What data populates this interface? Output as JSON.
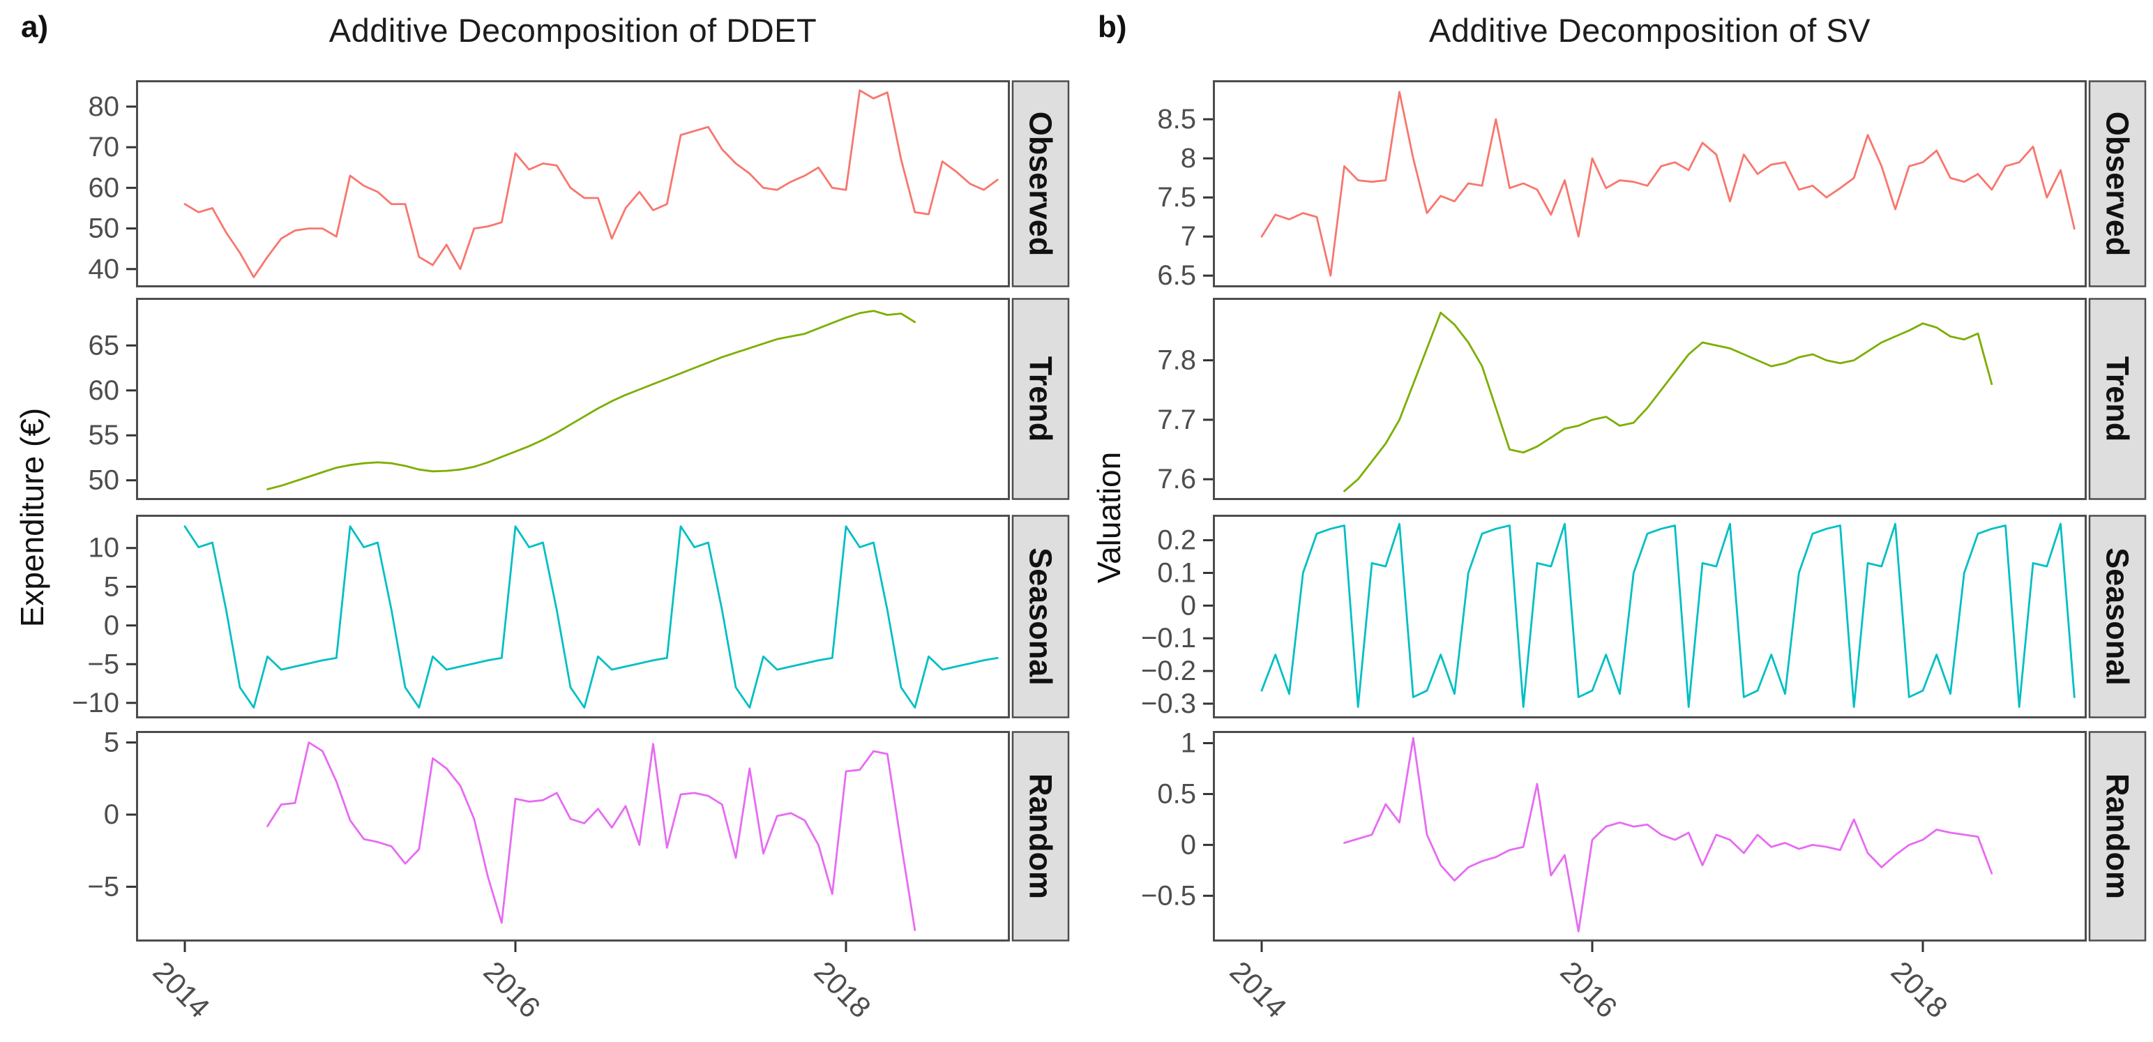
{
  "chart_data": {
    "type": "line",
    "description": "Two faceted additive time-series decompositions (Observed, Trend, Seasonal, Random), monthly data 2014-2018",
    "x_tick_years": [
      2014,
      2016,
      2018
    ],
    "figures": [
      {
        "tag": "a)",
        "title": "Additive Decomposition of DDET",
        "y_axis_label": "Expenditure (€)",
        "x_tick_labels": [
          "2014",
          "2016",
          "2018"
        ],
        "panels": [
          {
            "label": "Observed",
            "color": "#F8766D",
            "x_start_year": 2014.0,
            "ylim": [
              35.5,
              86.5
            ],
            "yticks": [
              40,
              50,
              60,
              70,
              80
            ],
            "ytick_labels": [
              "40",
              "50",
              "60",
              "70",
              "80"
            ],
            "values": [
              56,
              54,
              55,
              49,
              44,
              38,
              43,
              47.5,
              49.5,
              50,
              50,
              48,
              63,
              60.5,
              59,
              56,
              56,
              43,
              41,
              46,
              40,
              50,
              50.5,
              51.5,
              68.5,
              64.5,
              66,
              65.5,
              60,
              57.5,
              57.5,
              47.5,
              55,
              59,
              54.5,
              56,
              73,
              74,
              75,
              69.5,
              66,
              63.5,
              60,
              59.5,
              61.5,
              63,
              65,
              60,
              59.5,
              84,
              82,
              83.5,
              67,
              54,
              53.5,
              66.5,
              64,
              61,
              59.5,
              62
            ]
          },
          {
            "label": "Trend",
            "color": "#7CAE00",
            "x_start_year": 2014.5,
            "ylim": [
              47.8,
              70.3
            ],
            "yticks": [
              50,
              55,
              60,
              65
            ],
            "ytick_labels": [
              "50",
              "55",
              "60",
              "65"
            ],
            "values": [
              49,
              49.4,
              49.9,
              50.4,
              50.9,
              51.4,
              51.7,
              51.9,
              52,
              51.9,
              51.6,
              51.2,
              51,
              51.05,
              51.2,
              51.5,
              52,
              52.6,
              53.2,
              53.8,
              54.5,
              55.3,
              56.2,
              57.1,
              58,
              58.8,
              59.5,
              60.1,
              60.7,
              61.3,
              61.9,
              62.5,
              63.1,
              63.7,
              64.2,
              64.7,
              65.2,
              65.7,
              66,
              66.3,
              66.9,
              67.5,
              68.1,
              68.6,
              68.85,
              68.4,
              68.55,
              67.6
            ]
          },
          {
            "label": "Seasonal",
            "color": "#00BFC4",
            "x_start_year": 2014.0,
            "ylim": [
              -12,
              14.3
            ],
            "yticks": [
              -10,
              -5,
              0,
              5,
              10
            ],
            "ytick_labels": [
              "−10",
              "−5",
              "0",
              "5",
              "10"
            ],
            "values": [
              12.8,
              10.1,
              10.7,
              2,
              -8,
              -10.6,
              -4,
              -5.7,
              -5.3,
              -4.9,
              -4.5,
              -4.2,
              12.8,
              10.1,
              10.7,
              2,
              -8,
              -10.6,
              -4,
              -5.7,
              -5.3,
              -4.9,
              -4.5,
              -4.2,
              12.8,
              10.1,
              10.7,
              2,
              -8,
              -10.6,
              -4,
              -5.7,
              -5.3,
              -4.9,
              -4.5,
              -4.2,
              12.8,
              10.1,
              10.7,
              2,
              -8,
              -10.6,
              -4,
              -5.7,
              -5.3,
              -4.9,
              -4.5,
              -4.2,
              12.8,
              10.1,
              10.7,
              2,
              -8,
              -10.6,
              -4,
              -5.7,
              -5.3,
              -4.9,
              -4.5,
              -4.2
            ]
          },
          {
            "label": "Random",
            "color": "#E76BF3",
            "x_start_year": 2014.5,
            "ylim": [
              -8.8,
              5.8
            ],
            "yticks": [
              -5,
              0,
              5
            ],
            "ytick_labels": [
              "−5",
              "0",
              "5"
            ],
            "values": [
              -0.8,
              0.7,
              0.8,
              5,
              4.4,
              2.3,
              -0.4,
              -1.7,
              -1.9,
              -2.2,
              -3.4,
              -2.4,
              3.9,
              3.2,
              2,
              -0.3,
              -4.3,
              -7.5,
              1.1,
              0.9,
              1,
              1.5,
              -0.3,
              -0.6,
              0.4,
              -0.9,
              0.6,
              -2.1,
              4.9,
              -2.3,
              1.4,
              1.5,
              1.3,
              0.7,
              -3,
              3.2,
              -2.7,
              -0.1,
              0.1,
              -0.4,
              -2.1,
              -5.5,
              3,
              3.1,
              4.4,
              4.2,
              -2,
              -8
            ]
          }
        ]
      },
      {
        "tag": "b)",
        "title": "Additive Decomposition of SV",
        "y_axis_label": "Valuation",
        "x_tick_labels": [
          "2014",
          "2016",
          "2018"
        ],
        "panels": [
          {
            "label": "Observed",
            "color": "#F8766D",
            "x_start_year": 2014.0,
            "ylim": [
              6.35,
              9.0
            ],
            "yticks": [
              6.5,
              7,
              7.5,
              8,
              8.5
            ],
            "ytick_labels": [
              "6.5",
              "7",
              "7.5",
              "8",
              "8.5"
            ],
            "values": [
              7,
              7.28,
              7.22,
              7.3,
              7.25,
              6.5,
              7.9,
              7.72,
              7.7,
              7.72,
              8.85,
              8,
              7.3,
              7.52,
              7.45,
              7.68,
              7.65,
              8.5,
              7.62,
              7.68,
              7.6,
              7.28,
              7.72,
              7,
              8,
              7.62,
              7.72,
              7.7,
              7.65,
              7.9,
              7.95,
              7.85,
              8.2,
              8.05,
              7.45,
              8.05,
              7.8,
              7.92,
              7.95,
              7.6,
              7.65,
              7.5,
              7.62,
              7.75,
              8.3,
              7.9,
              7.35,
              7.9,
              7.95,
              8.1,
              7.75,
              7.7,
              7.8,
              7.6,
              7.9,
              7.95,
              8.15,
              7.5,
              7.85,
              7.1
            ]
          },
          {
            "label": "Trend",
            "color": "#7CAE00",
            "x_start_year": 2014.5,
            "ylim": [
              7.565,
              7.905
            ],
            "yticks": [
              7.6,
              7.7,
              7.8
            ],
            "ytick_labels": [
              "7.6",
              "7.7",
              "7.8"
            ],
            "values": [
              7.58,
              7.6,
              7.63,
              7.66,
              7.7,
              7.76,
              7.82,
              7.88,
              7.86,
              7.83,
              7.79,
              7.72,
              7.65,
              7.645,
              7.655,
              7.67,
              7.685,
              7.69,
              7.7,
              7.705,
              7.69,
              7.695,
              7.72,
              7.75,
              7.78,
              7.81,
              7.83,
              7.825,
              7.82,
              7.81,
              7.8,
              7.79,
              7.795,
              7.805,
              7.81,
              7.8,
              7.795,
              7.8,
              7.815,
              7.83,
              7.84,
              7.85,
              7.862,
              7.855,
              7.84,
              7.835,
              7.845,
              7.76
            ]
          },
          {
            "label": "Seasonal",
            "color": "#00BFC4",
            "x_start_year": 2014.0,
            "ylim": [
              -0.345,
              0.278
            ],
            "yticks": [
              -0.3,
              -0.2,
              -0.1,
              0,
              0.1,
              0.2
            ],
            "ytick_labels": [
              "−0.3",
              "−0.2",
              "−0.1",
              "0",
              "0.1",
              "0.2"
            ],
            "values": [
              -0.26,
              -0.15,
              -0.27,
              0.1,
              0.22,
              0.235,
              0.245,
              -0.31,
              0.13,
              0.12,
              0.25,
              -0.28,
              -0.26,
              -0.15,
              -0.27,
              0.1,
              0.22,
              0.235,
              0.245,
              -0.31,
              0.13,
              0.12,
              0.25,
              -0.28,
              -0.26,
              -0.15,
              -0.27,
              0.1,
              0.22,
              0.235,
              0.245,
              -0.31,
              0.13,
              0.12,
              0.25,
              -0.28,
              -0.26,
              -0.15,
              -0.27,
              0.1,
              0.22,
              0.235,
              0.245,
              -0.31,
              0.13,
              0.12,
              0.25,
              -0.28,
              -0.26,
              -0.15,
              -0.27,
              0.1,
              0.22,
              0.235,
              0.245,
              -0.31,
              0.13,
              0.12,
              0.25,
              -0.28
            ]
          },
          {
            "label": "Random",
            "color": "#E76BF3",
            "x_start_year": 2014.5,
            "ylim": [
              -0.95,
              1.12
            ],
            "yticks": [
              -0.5,
              0,
              0.5,
              1
            ],
            "ytick_labels": [
              "−0.5",
              "0",
              "0.5",
              "1"
            ],
            "values": [
              0.02,
              0.06,
              0.1,
              0.4,
              0.22,
              1.05,
              0.1,
              -0.2,
              -0.35,
              -0.22,
              -0.16,
              -0.12,
              -0.05,
              -0.02,
              0.6,
              -0.3,
              -0.1,
              -0.85,
              0.05,
              0.18,
              0.22,
              0.18,
              0.2,
              0.1,
              0.05,
              0.12,
              -0.2,
              0.1,
              0.05,
              -0.08,
              0.1,
              -0.02,
              0.02,
              -0.04,
              0,
              -0.02,
              -0.05,
              0.25,
              -0.08,
              -0.22,
              -0.1,
              0,
              0.05,
              0.15,
              0.12,
              0.1,
              0.08,
              -0.28
            ]
          }
        ]
      }
    ],
    "style": {
      "panel_border_color": "#4d4d4d",
      "strip_fill": "#dedede",
      "strip_text_color": "#111111",
      "tick_color": "#333333",
      "axis_text_color": "#4d4d4d",
      "background": "#ffffff"
    }
  }
}
